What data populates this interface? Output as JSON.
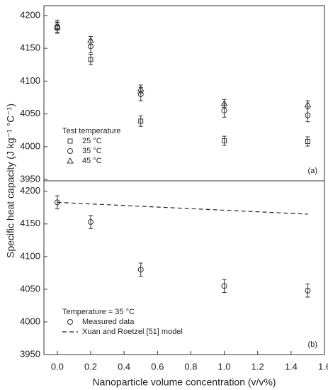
{
  "chart_data": [
    {
      "type": "scatter",
      "y_label": "Specific heat capacity (J kg⁻¹ °C⁻¹)",
      "panel_label": "(a)",
      "legend_title": "Test temperature",
      "xlim": [
        -0.08,
        1.6
      ],
      "ylim": [
        3948,
        4215
      ],
      "yticks": [
        3950,
        4000,
        4050,
        4100,
        4150,
        4200
      ],
      "series": [
        {
          "name": "25 °C",
          "marker": "square",
          "color": "#333333",
          "x": [
            0,
            0.2,
            0.5,
            1.0,
            1.5
          ],
          "values": [
            4182,
            4133,
            4039,
            4009,
            4008
          ],
          "errors": [
            8,
            8,
            8,
            7,
            7
          ]
        },
        {
          "name": "35 °C",
          "marker": "circle",
          "color": "#333333",
          "x": [
            0,
            0.2,
            0.5,
            1.0,
            1.5
          ],
          "values": [
            4183,
            4153,
            4080,
            4055,
            4048
          ],
          "errors": [
            10,
            10,
            10,
            10,
            10
          ]
        },
        {
          "name": "45 °C",
          "marker": "triangle",
          "color": "#333333",
          "x": [
            0,
            0.2,
            0.5,
            1.0,
            1.5
          ],
          "values": [
            4183,
            4162,
            4088,
            4066,
            4064
          ],
          "errors": [
            6,
            6,
            6,
            6,
            6
          ]
        }
      ]
    },
    {
      "type": "scatter",
      "x_label": "Nanoparticle volume concentration (v/v%)",
      "panel_label": "(b)",
      "legend_title": "Temperature = 35 °C",
      "xlim": [
        -0.08,
        1.6
      ],
      "ylim": [
        3950,
        4216
      ],
      "xticks": [
        {
          "value": 0,
          "label": "0.0"
        },
        0.2,
        0.4,
        0.6,
        0.8,
        {
          "value": 1,
          "label": "1.0"
        },
        1.2,
        1.4,
        1.6
      ],
      "yticks": [
        3950,
        4000,
        4050,
        4100,
        4150,
        4200
      ],
      "series": [
        {
          "name": "Measured data",
          "marker": "circle",
          "color": "#333333",
          "x": [
            0,
            0.2,
            0.5,
            1.0,
            1.5
          ],
          "values": [
            4183,
            4153,
            4080,
            4055,
            4048
          ],
          "errors": [
            10,
            10,
            10,
            10,
            10
          ]
        },
        {
          "name": "Xuan and Roetzel [51] model",
          "line_style": "dashed",
          "color": "#222222",
          "x": [
            0,
            1.5
          ],
          "values": [
            4183,
            4165
          ]
        }
      ]
    }
  ]
}
